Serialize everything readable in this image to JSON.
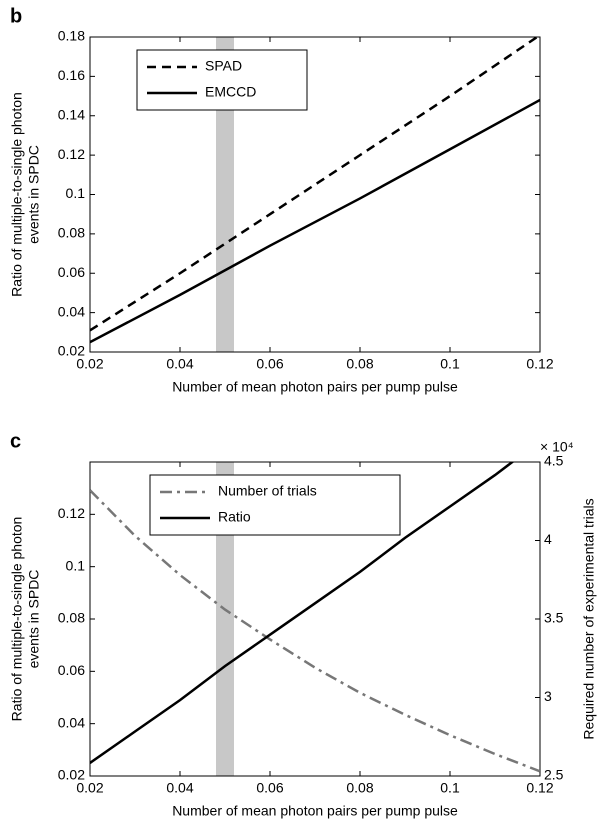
{
  "chart_data": [
    {
      "type": "line",
      "panel_label": "b",
      "xlabel": "Number of mean photon pairs per pump pulse",
      "ylabel": [
        "Ratio of multiple-to-single photon",
        "events in SPDC"
      ],
      "x": [
        0.02,
        0.04,
        0.06,
        0.08,
        0.1,
        0.12
      ],
      "xlim": [
        0.02,
        0.12
      ],
      "xticks": [
        0.02,
        0.04,
        0.06,
        0.08,
        0.1,
        0.12
      ],
      "ylim": [
        0.02,
        0.18
      ],
      "yticks": [
        0.02,
        0.04,
        0.06,
        0.08,
        0.1,
        0.12,
        0.14,
        0.16,
        0.18
      ],
      "shaded_region": [
        0.048,
        0.052
      ],
      "series": [
        {
          "name": "SPAD",
          "color": "#000000",
          "linestyle": "dashed",
          "values": [
            0.031,
            0.06,
            0.09,
            0.12,
            0.15,
            0.181
          ]
        },
        {
          "name": "EMCCD",
          "color": "#000000",
          "linestyle": "solid",
          "values": [
            0.025,
            0.049,
            0.074,
            0.098,
            0.123,
            0.148
          ]
        }
      ]
    },
    {
      "type": "line",
      "panel_label": "c",
      "xlabel": "Number of mean photon pairs per pump pulse",
      "ylabel": [
        "Ratio of multiple-to-single photon",
        "events in SPDC"
      ],
      "y2label": "Required number of experimental trials",
      "y2_scale_label": "× 10⁴",
      "x": [
        0.02,
        0.03,
        0.04,
        0.05,
        0.06,
        0.07,
        0.08,
        0.09,
        0.1,
        0.11,
        0.12
      ],
      "xlim": [
        0.02,
        0.12
      ],
      "xticks": [
        0.02,
        0.04,
        0.06,
        0.08,
        0.1,
        0.12
      ],
      "ylim": [
        0.02,
        0.14
      ],
      "yticks": [
        0.02,
        0.04,
        0.06,
        0.08,
        0.1,
        0.12
      ],
      "y2lim": [
        2.5,
        4.5
      ],
      "y2ticks": [
        2.5,
        3,
        3.5,
        4,
        4.5
      ],
      "shaded_region": [
        0.048,
        0.052
      ],
      "series": [
        {
          "name": "Number of trials",
          "color": "#777777",
          "linestyle": "dashdot",
          "axis": "y2",
          "values": [
            4.32,
            4.03,
            3.78,
            3.56,
            3.37,
            3.19,
            3.03,
            2.89,
            2.76,
            2.64,
            2.53
          ]
        },
        {
          "name": "Ratio",
          "color": "#000000",
          "linestyle": "solid",
          "values": [
            0.025,
            0.037,
            0.049,
            0.062,
            0.074,
            0.086,
            0.098,
            0.111,
            0.123,
            0.135,
            0.148
          ]
        }
      ]
    }
  ]
}
